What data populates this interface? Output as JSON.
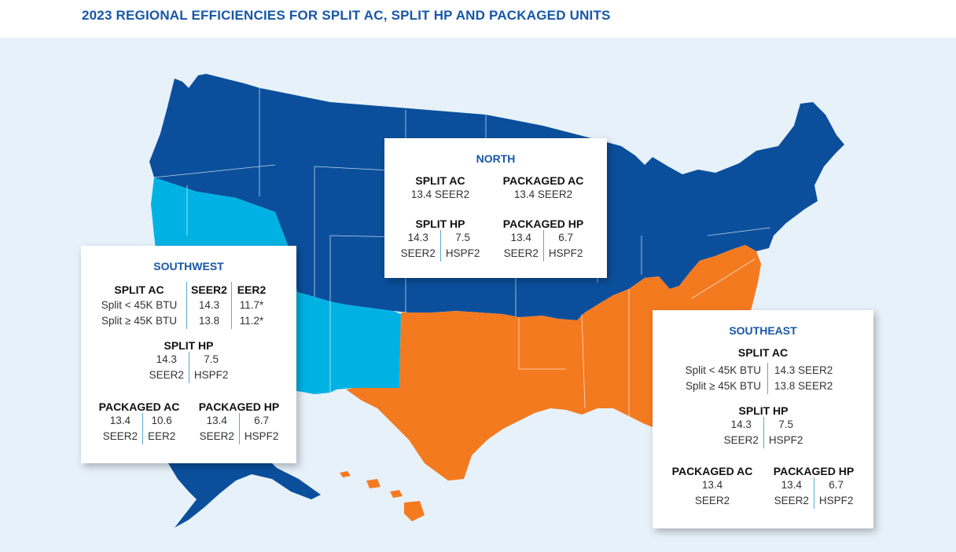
{
  "title": "2023 REGIONAL EFFICIENCIES FOR SPLIT AC, SPLIT HP AND PACKAGED UNITS",
  "colors": {
    "north": "#0b4f9c",
    "southwest": "#00b2e3",
    "southeast": "#f47a20",
    "background": "#e7f1fa",
    "title": "#1757a8"
  },
  "north": {
    "name": "NORTH",
    "split_ac": {
      "label": "SPLIT AC",
      "value": "13.4 SEER2"
    },
    "packaged_ac": {
      "label": "PACKAGED AC",
      "value": "13.4 SEER2"
    },
    "split_hp": {
      "label": "SPLIT HP",
      "seer": "14.3",
      "seer_unit": "SEER2",
      "hspf": "7.5",
      "hspf_unit": "HSPF2"
    },
    "packaged_hp": {
      "label": "PACKAGED HP",
      "seer": "13.4",
      "seer_unit": "SEER2",
      "hspf": "6.7",
      "hspf_unit": "HSPF2"
    }
  },
  "southwest": {
    "name": "SOUTHWEST",
    "split_ac": {
      "label": "SPLIT AC",
      "col_seer": "SEER2",
      "col_eer": "EER2",
      "rows": [
        {
          "label": "Split < 45K BTU",
          "seer": "14.3",
          "eer": "11.7*"
        },
        {
          "label": "Split ≥ 45K BTU",
          "seer": "13.8",
          "eer": "11.2*"
        }
      ]
    },
    "split_hp": {
      "label": "SPLIT HP",
      "seer": "14.3",
      "seer_unit": "SEER2",
      "hspf": "7.5",
      "hspf_unit": "HSPF2"
    },
    "packaged_ac": {
      "label": "PACKAGED AC",
      "seer": "13.4",
      "seer_unit": "SEER2",
      "eer": "10.6",
      "eer_unit": "EER2"
    },
    "packaged_hp": {
      "label": "PACKAGED HP",
      "seer": "13.4",
      "seer_unit": "SEER2",
      "hspf": "6.7",
      "hspf_unit": "HSPF2"
    }
  },
  "southeast": {
    "name": "SOUTHEAST",
    "split_ac": {
      "label": "SPLIT AC",
      "rows": [
        {
          "label": "Split < 45K BTU",
          "value": "14.3 SEER2"
        },
        {
          "label": "Split ≥ 45K BTU",
          "value": "13.8 SEER2"
        }
      ]
    },
    "split_hp": {
      "label": "SPLIT HP",
      "seer": "14.3",
      "seer_unit": "SEER2",
      "hspf": "7.5",
      "hspf_unit": "HSPF2"
    },
    "packaged_ac": {
      "label": "PACKAGED AC",
      "seer": "13.4",
      "seer_unit": "SEER2"
    },
    "packaged_hp": {
      "label": "PACKAGED HP",
      "seer": "13.4",
      "seer_unit": "SEER2",
      "hspf": "6.7",
      "hspf_unit": "HSPF2"
    }
  }
}
